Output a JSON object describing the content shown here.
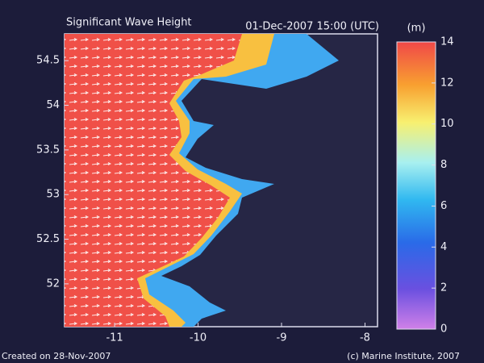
{
  "map": {
    "title": "Significant Wave Height",
    "timestamp": "01-Dec-2007 15:00 (UTC)",
    "xlim": [
      -11.6,
      -7.85
    ],
    "xticks": [
      -11,
      -10,
      -9,
      -8
    ],
    "ylim": [
      51.52,
      54.8
    ],
    "yticks": [
      54.5,
      54,
      53.5,
      53,
      52.5,
      52
    ]
  },
  "colorbar": {
    "unit": "(m)",
    "lim": [
      0,
      14
    ],
    "ticks": [
      0,
      2,
      4,
      6,
      8,
      10,
      12,
      14
    ]
  },
  "footer": {
    "created": "Created on 28-Nov-2007",
    "copyright": "(c) Marine Institute, 2007"
  }
}
